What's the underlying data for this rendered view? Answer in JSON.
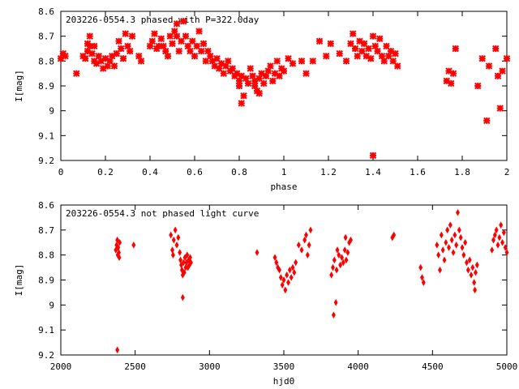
{
  "chart_data": [
    {
      "type": "scatter",
      "title": "203226-0554.3 phased with P=322.0day",
      "xlabel": "phase",
      "ylabel": "I[mag]",
      "xlim": [
        0,
        2
      ],
      "ylim": [
        9.2,
        8.6
      ],
      "y_inverted": true,
      "grid": false,
      "marker_color": "#ff0000",
      "x_ticks": [
        "0",
        "0.2",
        "0.4",
        "0.6",
        "0.8",
        "1",
        "1.2",
        "1.4",
        "1.6",
        "1.8",
        "2"
      ],
      "x_tick_values": [
        0,
        0.2,
        0.4,
        0.6,
        0.8,
        1.0,
        1.2,
        1.4,
        1.6,
        1.8,
        2.0
      ],
      "y_ticks": [
        "8.6",
        "8.7",
        "8.8",
        "8.9",
        "9",
        "9.1",
        "9.2"
      ],
      "y_tick_values": [
        8.6,
        8.7,
        8.8,
        8.9,
        9.0,
        9.1,
        9.2
      ],
      "series": [
        {
          "points": [
            [
              0.0,
              8.79
            ],
            [
              0.01,
              8.77
            ],
            [
              0.02,
              8.78
            ],
            [
              0.07,
              8.85
            ],
            [
              0.1,
              8.78
            ],
            [
              0.11,
              8.79
            ],
            [
              0.12,
              8.73
            ],
            [
              0.12,
              8.76
            ],
            [
              0.13,
              8.7
            ],
            [
              0.13,
              8.74
            ],
            [
              0.14,
              8.77
            ],
            [
              0.15,
              8.8
            ],
            [
              0.15,
              8.74
            ],
            [
              0.16,
              8.81
            ],
            [
              0.17,
              8.78
            ],
            [
              0.18,
              8.8
            ],
            [
              0.19,
              8.83
            ],
            [
              0.2,
              8.79
            ],
            [
              0.21,
              8.82
            ],
            [
              0.22,
              8.8
            ],
            [
              0.23,
              8.78
            ],
            [
              0.24,
              8.82
            ],
            [
              0.25,
              8.77
            ],
            [
              0.26,
              8.72
            ],
            [
              0.27,
              8.75
            ],
            [
              0.28,
              8.79
            ],
            [
              0.29,
              8.69
            ],
            [
              0.3,
              8.74
            ],
            [
              0.31,
              8.76
            ],
            [
              0.32,
              8.7
            ],
            [
              0.35,
              8.78
            ],
            [
              0.36,
              8.8
            ],
            [
              0.4,
              8.74
            ],
            [
              0.41,
              8.72
            ],
            [
              0.42,
              8.69
            ],
            [
              0.43,
              8.75
            ],
            [
              0.44,
              8.74
            ],
            [
              0.45,
              8.71
            ],
            [
              0.46,
              8.74
            ],
            [
              0.47,
              8.76
            ],
            [
              0.48,
              8.78
            ],
            [
              0.49,
              8.7
            ],
            [
              0.5,
              8.73
            ],
            [
              0.51,
              8.68
            ],
            [
              0.52,
              8.65
            ],
            [
              0.52,
              8.7
            ],
            [
              0.53,
              8.76
            ],
            [
              0.54,
              8.72
            ],
            [
              0.55,
              8.64
            ],
            [
              0.56,
              8.7
            ],
            [
              0.57,
              8.74
            ],
            [
              0.58,
              8.76
            ],
            [
              0.59,
              8.72
            ],
            [
              0.6,
              8.78
            ],
            [
              0.61,
              8.74
            ],
            [
              0.62,
              8.68
            ],
            [
              0.63,
              8.76
            ],
            [
              0.64,
              8.73
            ],
            [
              0.65,
              8.8
            ],
            [
              0.66,
              8.76
            ],
            [
              0.67,
              8.78
            ],
            [
              0.68,
              8.8
            ],
            [
              0.69,
              8.82
            ],
            [
              0.7,
              8.79
            ],
            [
              0.71,
              8.83
            ],
            [
              0.72,
              8.81
            ],
            [
              0.73,
              8.85
            ],
            [
              0.74,
              8.82
            ],
            [
              0.75,
              8.8
            ],
            [
              0.76,
              8.84
            ],
            [
              0.77,
              8.83
            ],
            [
              0.78,
              8.86
            ],
            [
              0.79,
              8.85
            ],
            [
              0.8,
              8.88
            ],
            [
              0.8,
              8.9
            ],
            [
              0.81,
              8.86
            ],
            [
              0.81,
              8.97
            ],
            [
              0.82,
              8.94
            ],
            [
              0.83,
              8.87
            ],
            [
              0.84,
              8.89
            ],
            [
              0.85,
              8.83
            ],
            [
              0.86,
              8.86
            ],
            [
              0.87,
              8.88
            ],
            [
              0.87,
              8.9
            ],
            [
              0.88,
              8.92
            ],
            [
              0.89,
              8.93
            ],
            [
              0.89,
              8.87
            ],
            [
              0.9,
              8.85
            ],
            [
              0.91,
              8.89
            ],
            [
              0.92,
              8.86
            ],
            [
              0.93,
              8.84
            ],
            [
              0.94,
              8.82
            ],
            [
              0.95,
              8.88
            ],
            [
              0.96,
              8.85
            ],
            [
              0.97,
              8.8
            ],
            [
              0.98,
              8.86
            ],
            [
              0.99,
              8.83
            ],
            [
              1.0,
              8.84
            ],
            [
              1.02,
              8.79
            ],
            [
              1.04,
              8.81
            ],
            [
              1.08,
              8.8
            ],
            [
              1.1,
              8.85
            ],
            [
              1.13,
              8.8
            ],
            [
              1.16,
              8.72
            ],
            [
              1.19,
              8.78
            ],
            [
              1.21,
              8.73
            ],
            [
              1.25,
              8.77
            ],
            [
              1.28,
              8.8
            ],
            [
              1.3,
              8.73
            ],
            [
              1.31,
              8.69
            ],
            [
              1.32,
              8.75
            ],
            [
              1.33,
              8.78
            ],
            [
              1.34,
              8.72
            ],
            [
              1.35,
              8.76
            ],
            [
              1.36,
              8.73
            ],
            [
              1.37,
              8.78
            ],
            [
              1.38,
              8.75
            ],
            [
              1.39,
              8.79
            ],
            [
              1.4,
              8.7
            ],
            [
              1.41,
              8.74
            ],
            [
              1.42,
              8.76
            ],
            [
              1.43,
              8.71
            ],
            [
              1.44,
              8.78
            ],
            [
              1.45,
              8.8
            ],
            [
              1.46,
              8.74
            ],
            [
              1.47,
              8.78
            ],
            [
              1.48,
              8.76
            ],
            [
              1.49,
              8.8
            ],
            [
              1.5,
              8.77
            ],
            [
              1.51,
              8.82
            ],
            [
              1.4,
              9.18
            ],
            [
              1.73,
              8.88
            ],
            [
              1.74,
              8.84
            ],
            [
              1.75,
              8.89
            ],
            [
              1.76,
              8.85
            ],
            [
              1.77,
              8.75
            ],
            [
              1.87,
              8.9
            ],
            [
              1.89,
              8.79
            ],
            [
              1.91,
              9.04
            ],
            [
              1.92,
              8.82
            ],
            [
              1.95,
              8.75
            ],
            [
              1.96,
              8.86
            ],
            [
              1.97,
              8.99
            ],
            [
              1.98,
              8.84
            ],
            [
              2.0,
              8.79
            ]
          ]
        }
      ]
    },
    {
      "type": "scatter",
      "title": "203226-0554.3 not phased light curve",
      "xlabel": "hjd0",
      "ylabel": "I[mag]",
      "xlim": [
        2000,
        5000
      ],
      "ylim": [
        9.2,
        8.6
      ],
      "y_inverted": true,
      "grid": false,
      "marker_color": "#ff0000",
      "x_ticks": [
        "2000",
        "2500",
        "3000",
        "3500",
        "4000",
        "4500",
        "5000"
      ],
      "x_tick_values": [
        2000,
        2500,
        3000,
        3500,
        4000,
        4500,
        5000
      ],
      "y_ticks": [
        "8.6",
        "8.7",
        "8.8",
        "8.9",
        "9",
        "9.1",
        "9.2"
      ],
      "y_tick_values": [
        8.6,
        8.7,
        8.8,
        8.9,
        9.0,
        9.1,
        9.2
      ],
      "series": [
        {
          "points": [
            [
              2370,
              8.78
            ],
            [
              2375,
              8.76
            ],
            [
              2380,
              8.74
            ],
            [
              2383,
              8.8
            ],
            [
              2386,
              8.77
            ],
            [
              2390,
              8.79
            ],
            [
              2393,
              8.81
            ],
            [
              2396,
              8.75
            ],
            [
              2380,
              9.18
            ],
            [
              2490,
              8.76
            ],
            [
              2740,
              8.72
            ],
            [
              2750,
              8.78
            ],
            [
              2755,
              8.8
            ],
            [
              2760,
              8.74
            ],
            [
              2770,
              8.7
            ],
            [
              2780,
              8.76
            ],
            [
              2790,
              8.73
            ],
            [
              2800,
              8.79
            ],
            [
              2805,
              8.82
            ],
            [
              2810,
              8.84
            ],
            [
              2815,
              8.86
            ],
            [
              2820,
              8.88
            ],
            [
              2825,
              8.83
            ],
            [
              2830,
              8.87
            ],
            [
              2835,
              8.81
            ],
            [
              2840,
              8.85
            ],
            [
              2845,
              8.83
            ],
            [
              2850,
              8.8
            ],
            [
              2855,
              8.85
            ],
            [
              2860,
              8.82
            ],
            [
              2865,
              8.84
            ],
            [
              2870,
              8.81
            ],
            [
              2875,
              8.83
            ],
            [
              2820,
              8.97
            ],
            [
              3320,
              8.79
            ],
            [
              3440,
              8.81
            ],
            [
              3450,
              8.83
            ],
            [
              3460,
              8.85
            ],
            [
              3470,
              8.86
            ],
            [
              3480,
              8.89
            ],
            [
              3490,
              8.92
            ],
            [
              3500,
              8.9
            ],
            [
              3510,
              8.94
            ],
            [
              3520,
              8.88
            ],
            [
              3530,
              8.91
            ],
            [
              3540,
              8.86
            ],
            [
              3550,
              8.89
            ],
            [
              3560,
              8.85
            ],
            [
              3570,
              8.87
            ],
            [
              3580,
              8.83
            ],
            [
              3600,
              8.76
            ],
            [
              3620,
              8.78
            ],
            [
              3640,
              8.74
            ],
            [
              3650,
              8.72
            ],
            [
              3660,
              8.8
            ],
            [
              3670,
              8.76
            ],
            [
              3680,
              8.7
            ],
            [
              3820,
              8.88
            ],
            [
              3830,
              8.85
            ],
            [
              3835,
              9.04
            ],
            [
              3840,
              8.82
            ],
            [
              3850,
              8.99
            ],
            [
              3855,
              8.86
            ],
            [
              3860,
              8.78
            ],
            [
              3870,
              8.8
            ],
            [
              3880,
              8.84
            ],
            [
              3890,
              8.81
            ],
            [
              3900,
              8.83
            ],
            [
              3910,
              8.78
            ],
            [
              3915,
              8.73
            ],
            [
              3920,
              8.82
            ],
            [
              3930,
              8.79
            ],
            [
              3940,
              8.75
            ],
            [
              3950,
              8.74
            ],
            [
              4230,
              8.73
            ],
            [
              4240,
              8.72
            ],
            [
              4420,
              8.85
            ],
            [
              4430,
              8.89
            ],
            [
              4440,
              8.91
            ],
            [
              4530,
              8.76
            ],
            [
              4540,
              8.8
            ],
            [
              4550,
              8.86
            ],
            [
              4560,
              8.72
            ],
            [
              4570,
              8.78
            ],
            [
              4580,
              8.82
            ],
            [
              4590,
              8.75
            ],
            [
              4600,
              8.7
            ],
            [
              4610,
              8.77
            ],
            [
              4620,
              8.68
            ],
            [
              4630,
              8.74
            ],
            [
              4640,
              8.79
            ],
            [
              4650,
              8.72
            ],
            [
              4660,
              8.76
            ],
            [
              4670,
              8.63
            ],
            [
              4680,
              8.7
            ],
            [
              4690,
              8.73
            ],
            [
              4700,
              8.77
            ],
            [
              4710,
              8.8
            ],
            [
              4720,
              8.75
            ],
            [
              4730,
              8.83
            ],
            [
              4740,
              8.86
            ],
            [
              4750,
              8.82
            ],
            [
              4760,
              8.88
            ],
            [
              4770,
              8.85
            ],
            [
              4780,
              8.91
            ],
            [
              4785,
              8.94
            ],
            [
              4790,
              8.87
            ],
            [
              4800,
              8.84
            ],
            [
              4900,
              8.78
            ],
            [
              4910,
              8.74
            ],
            [
              4920,
              8.72
            ],
            [
              4930,
              8.7
            ],
            [
              4940,
              8.76
            ],
            [
              4950,
              8.73
            ],
            [
              4960,
              8.68
            ],
            [
              4970,
              8.75
            ],
            [
              4980,
              8.71
            ],
            [
              4990,
              8.77
            ],
            [
              5000,
              8.79
            ]
          ]
        }
      ]
    }
  ]
}
